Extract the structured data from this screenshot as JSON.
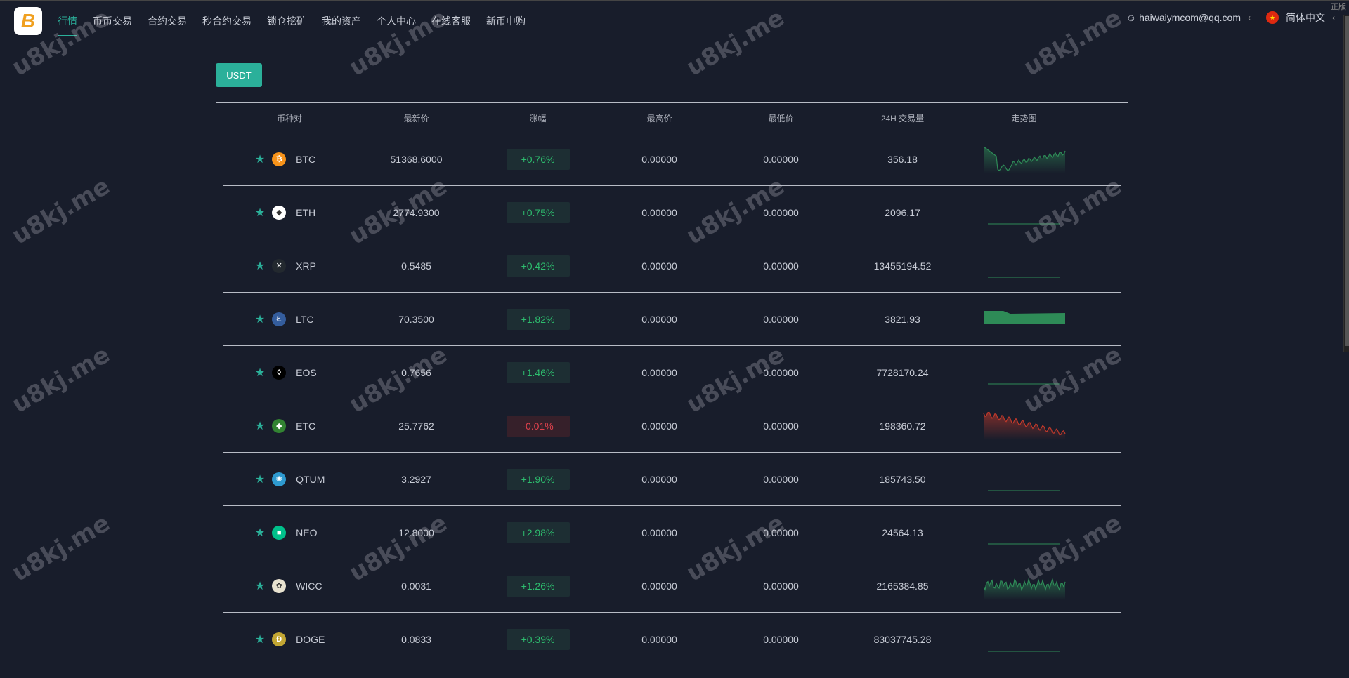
{
  "nav": {
    "logo": "B",
    "items": [
      "行情",
      "币币交易",
      "合约交易",
      "秒合约交易",
      "锁仓挖矿",
      "我的资产",
      "个人中心",
      "在线客服",
      "新币申购"
    ],
    "active": 0
  },
  "user": {
    "email": "haiwaiymcom@qq.com",
    "language": "简体中文",
    "corner": "正版"
  },
  "tab": "USDT",
  "headers": [
    "币种对",
    "最新价",
    "涨幅",
    "最高价",
    "最低价",
    "24H 交易量",
    "走势图"
  ],
  "rows": [
    {
      "symbol": "BTC",
      "price": "51368.6000",
      "change": "+0.76%",
      "high": "0.00000",
      "low": "0.00000",
      "volume": "356.18",
      "icon_color": "#f7931a",
      "icon": "₿",
      "trend": "up"
    },
    {
      "symbol": "ETH",
      "price": "2774.9300",
      "change": "+0.75%",
      "high": "0.00000",
      "low": "0.00000",
      "volume": "2096.17",
      "icon_color": "#ffffff",
      "icon": "◆",
      "trend": "flat"
    },
    {
      "symbol": "XRP",
      "price": "0.5485",
      "change": "+0.42%",
      "high": "0.00000",
      "low": "0.00000",
      "volume": "13455194.52",
      "icon_color": "#23292f",
      "icon": "✕",
      "trend": "flat"
    },
    {
      "symbol": "LTC",
      "price": "70.3500",
      "change": "+1.82%",
      "high": "0.00000",
      "low": "0.00000",
      "volume": "3821.93",
      "icon_color": "#345d9d",
      "icon": "Ł",
      "trend": "band"
    },
    {
      "symbol": "EOS",
      "price": "0.7656",
      "change": "+1.46%",
      "high": "0.00000",
      "low": "0.00000",
      "volume": "7728170.24",
      "icon_color": "#000000",
      "icon": "◊",
      "trend": "flat"
    },
    {
      "symbol": "ETC",
      "price": "25.7762",
      "change": "-0.01%",
      "high": "0.00000",
      "low": "0.00000",
      "volume": "198360.72",
      "icon_color": "#328332",
      "icon": "◆",
      "trend": "down"
    },
    {
      "symbol": "QTUM",
      "price": "3.2927",
      "change": "+1.90%",
      "high": "0.00000",
      "low": "0.00000",
      "volume": "185743.50",
      "icon_color": "#2e9ad0",
      "icon": "✺",
      "trend": "flat"
    },
    {
      "symbol": "NEO",
      "price": "12.8000",
      "change": "+2.98%",
      "high": "0.00000",
      "low": "0.00000",
      "volume": "24564.13",
      "icon_color": "#00c08b",
      "icon": "■",
      "trend": "flat"
    },
    {
      "symbol": "WICC",
      "price": "0.0031",
      "change": "+1.26%",
      "high": "0.00000",
      "low": "0.00000",
      "volume": "2165384.85",
      "icon_color": "#e8e2d0",
      "icon": "✿",
      "trend": "noisy"
    },
    {
      "symbol": "DOGE",
      "price": "0.0833",
      "change": "+0.39%",
      "high": "0.00000",
      "low": "0.00000",
      "volume": "83037745.28",
      "icon_color": "#c2a633",
      "icon": "Ð",
      "trend": "flat"
    }
  ],
  "watermark": "u8kj.me",
  "colors": {
    "accent": "#2bb09a",
    "up": "#2dbd6e",
    "down": "#e0424d",
    "background": "#181d2b"
  }
}
